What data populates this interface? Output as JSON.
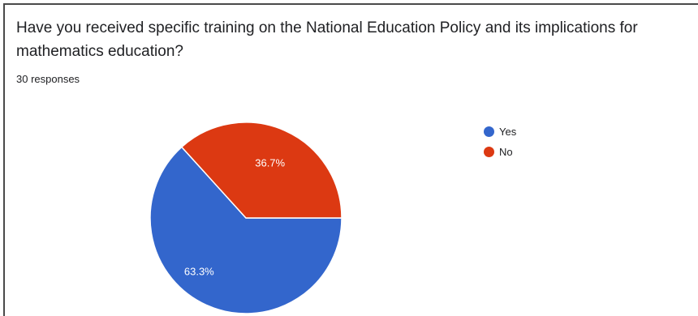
{
  "question": {
    "line1": "Have you received specific training on the National Education Policy and its implications for",
    "line2": "mathematics education?"
  },
  "responses_text": "30 responses",
  "chart_data": {
    "type": "pie",
    "slices": [
      {
        "label": "Yes",
        "value": 63.3,
        "value_label": "63.3%",
        "color": "#3366cc"
      },
      {
        "label": "No",
        "value": 36.7,
        "value_label": "36.7%",
        "color": "#dc3912"
      }
    ],
    "legend_position": "right"
  }
}
